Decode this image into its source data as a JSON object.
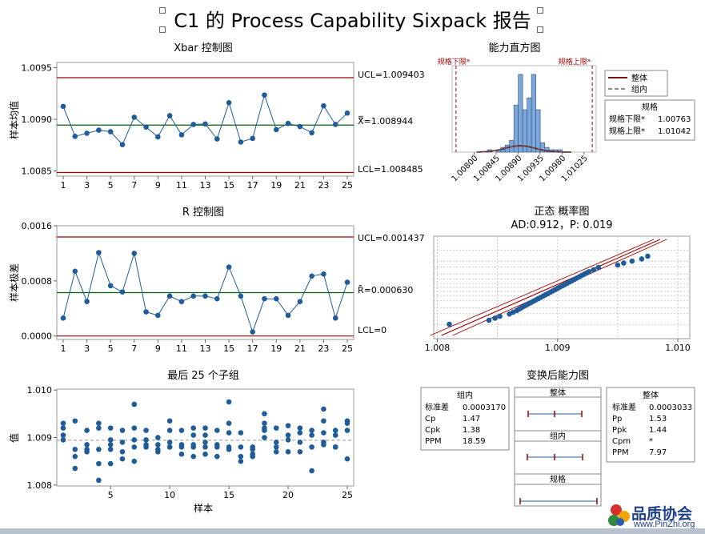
{
  "title": "C1 的 Process Capability Sixpack 报告",
  "xbar": {
    "title": "Xbar 控制图",
    "ylabel": "样本均值",
    "ucl_label": "UCL=1.009403",
    "center_label": "X̿=1.008944",
    "lcl_label": "LCL=1.008485",
    "yticks": [
      "1.0095",
      "1.0090",
      "1.0085"
    ],
    "xticks": [
      "1",
      "3",
      "5",
      "7",
      "9",
      "11",
      "13",
      "15",
      "17",
      "19",
      "21",
      "23",
      "25"
    ],
    "colors": {
      "limit": "#a00000",
      "center": "#006400",
      "point": "#1f5c99"
    }
  },
  "rchart": {
    "title": "R 控制图",
    "ylabel": "样本极差",
    "ucl_label": "UCL=0.001437",
    "center_label": "R̄=0.000630",
    "lcl_label": "LCL=0",
    "yticks": [
      "0.0016",
      "0.0008",
      "0.0000"
    ],
    "xticks": [
      "1",
      "3",
      "5",
      "7",
      "9",
      "11",
      "13",
      "15",
      "17",
      "19",
      "21",
      "23",
      "25"
    ]
  },
  "last25": {
    "title": "最后 25 个子组",
    "ylabel": "值",
    "xlabel": "样本",
    "yticks": [
      "1.010",
      "1.009",
      "1.008"
    ],
    "xticks": [
      "5",
      "10",
      "15",
      "20",
      "25"
    ]
  },
  "histogram": {
    "title": "能力直方图",
    "lsl_label": "规格下限*",
    "usl_label": "规格上限*",
    "xticks": [
      "1.00800",
      "1.00845",
      "1.00890",
      "1.00935",
      "1.00980",
      "1.01025"
    ]
  },
  "legend": {
    "overall": "整体",
    "within": "组内",
    "spec_title": "规格",
    "lsl_row": "规格下限*",
    "lsl_value": "1.00763",
    "usl_row": "规格上限*",
    "usl_value": "1.01042"
  },
  "normal": {
    "title": "正态 概率图",
    "subtitle": "AD:0.912，P: 0.019",
    "xticks": [
      "1.008",
      "1.009",
      "1.010"
    ]
  },
  "capability": {
    "title": "变换后能力图",
    "within_box": {
      "title": "组内",
      "rows": [
        [
          "标准差",
          "0.0003170"
        ],
        [
          "Cp",
          "1.47"
        ],
        [
          "Cpk",
          "1.38"
        ],
        [
          "PPM",
          "18.59"
        ]
      ]
    },
    "overall_box": {
      "title": "整体",
      "rows": [
        [
          "标准差",
          "0.0003033"
        ],
        [
          "Pp",
          "1.53"
        ],
        [
          "Ppk",
          "1.44"
        ],
        [
          "Cpm",
          "*"
        ],
        [
          "PPM",
          "7.97"
        ]
      ]
    },
    "plot_labels": {
      "overall": "整体",
      "within": "组内",
      "spec": "规格"
    }
  },
  "logo": {
    "name": "品质协会",
    "url": "www.PinZhi.org"
  },
  "chart_data": [
    {
      "type": "line",
      "title": "Xbar 控制图",
      "xlabel": "",
      "ylabel": "样本均值",
      "x": [
        1,
        2,
        3,
        4,
        5,
        6,
        7,
        8,
        9,
        10,
        11,
        12,
        13,
        14,
        15,
        16,
        17,
        18,
        19,
        20,
        21,
        22,
        23,
        24,
        25
      ],
      "series": [
        {
          "values": [
            1.009125,
            1.008835,
            1.008865,
            1.008895,
            1.00888,
            1.008755,
            1.00902,
            1.008925,
            1.00883,
            1.009035,
            1.00885,
            1.00895,
            1.008955,
            1.00881,
            1.00916,
            1.00878,
            1.008815,
            1.009235,
            1.0089,
            1.00896,
            1.00893,
            1.00887,
            1.00913,
            1.00895,
            1.00906
          ]
        }
      ],
      "ucl": 1.009403,
      "center": 1.008944,
      "lcl": 1.008485,
      "ylim": [
        1.00845,
        1.00955
      ]
    },
    {
      "type": "line",
      "title": "R 控制图",
      "xlabel": "",
      "ylabel": "样本极差",
      "x": [
        1,
        2,
        3,
        4,
        5,
        6,
        7,
        8,
        9,
        10,
        11,
        12,
        13,
        14,
        15,
        16,
        17,
        18,
        19,
        20,
        21,
        22,
        23,
        24,
        25
      ],
      "series": [
        {
          "values": [
            0.00026,
            0.00094,
            0.0005,
            0.00121,
            0.00073,
            0.00064,
            0.0012,
            0.00035,
            0.0003,
            0.00058,
            0.0005,
            0.00058,
            0.00058,
            0.00054,
            0.001,
            0.00058,
            6e-05,
            0.00054,
            0.00054,
            0.0003,
            0.0005,
            0.00087,
            0.0009,
            0.00026,
            0.00078
          ]
        }
      ],
      "ucl": 0.001437,
      "center": 0.00063,
      "lcl": 0.0,
      "ylim": [
        -5e-05,
        0.0016
      ]
    },
    {
      "type": "scatter",
      "title": "最后 25 个子组",
      "xlabel": "样本",
      "ylabel": "值",
      "center": 1.008944,
      "ylim": [
        1.00798,
        1.01002
      ],
      "subgroups": [
        [
          1.0093,
          1.0092,
          1.00905,
          1.00895
        ],
        [
          1.00935,
          1.00875,
          1.0086,
          1.00835
        ],
        [
          1.00915,
          1.00885,
          1.00875,
          1.0087
        ],
        [
          1.0093,
          1.0092,
          1.00875,
          1.00845,
          1.0081
        ],
        [
          1.0092,
          1.00895,
          1.00885,
          1.00875,
          1.00845
        ],
        [
          1.00915,
          1.0089,
          1.0087,
          1.00855
        ],
        [
          1.0097,
          1.0092,
          1.00895,
          1.0088,
          1.0085
        ],
        [
          1.00915,
          1.00895,
          1.00885,
          1.0088
        ],
        [
          1.009,
          1.00885,
          1.00875,
          1.0087
        ],
        [
          1.00935,
          1.00915,
          1.0089,
          1.0088,
          1.0088
        ],
        [
          1.00915,
          1.00885,
          1.0088,
          1.00865
        ],
        [
          1.0092,
          1.00905,
          1.00885,
          1.0088,
          1.0086
        ],
        [
          1.0092,
          1.00905,
          1.0089,
          1.0088,
          1.00865
        ],
        [
          1.00915,
          1.00885,
          1.0088,
          1.0086
        ],
        [
          1.00975,
          1.0093,
          1.0091,
          1.0088,
          1.00875
        ],
        [
          1.0091,
          1.0088,
          1.0086,
          1.0085
        ],
        [
          1.0088,
          1.00875,
          1.00865,
          1.0086
        ],
        [
          1.0095,
          1.0093,
          1.0092,
          1.00915,
          1.009
        ],
        [
          1.0092,
          1.0089,
          1.0088,
          1.0087
        ],
        [
          1.00925,
          1.00905,
          1.00895,
          1.0087
        ],
        [
          1.0092,
          1.0091,
          1.0089,
          1.0087
        ],
        [
          1.00915,
          1.00905,
          1.0088,
          1.0083
        ],
        [
          1.0096,
          1.00935,
          1.0091,
          1.0089,
          1.00885
        ],
        [
          1.00915,
          1.00905,
          1.0088,
          1.0088
        ],
        [
          1.00935,
          1.0093,
          1.00915,
          1.00855
        ]
      ]
    },
    {
      "type": "bar",
      "title": "能力直方图",
      "bin_width": 9e-05,
      "bin_centers": [
        1.00832,
        1.00841,
        1.0085,
        1.00859,
        1.00868,
        1.00877,
        1.00886,
        1.00895,
        1.00904,
        1.00913,
        1.00922,
        1.00931,
        1.0094,
        1.00949,
        1.00958,
        1.00967,
        1.00976
      ],
      "values": [
        1,
        0,
        1,
        2,
        3,
        5,
        20,
        33,
        18,
        23,
        33,
        18,
        4,
        2,
        1,
        1,
        1
      ],
      "lsl": 1.00763,
      "usl": 1.01042,
      "xlim": [
        1.00755,
        1.0105
      ]
    },
    {
      "type": "scatter",
      "title": "正态 概率图",
      "subtitle": "AD:0.912，P: 0.019",
      "xlim": [
        1.00797,
        1.0101
      ],
      "x": [
        1.0081,
        1.00843,
        1.00848,
        1.00852,
        1.0086,
        1.00863,
        1.00866,
        1.00868,
        1.0087,
        1.00872,
        1.00874,
        1.00876,
        1.00878,
        1.0088,
        1.00882,
        1.00884,
        1.00886,
        1.00888,
        1.0089,
        1.00892,
        1.00894,
        1.00896,
        1.00898,
        1.009,
        1.00902,
        1.00904,
        1.00906,
        1.00908,
        1.0091,
        1.00912,
        1.00914,
        1.00916,
        1.00918,
        1.0092,
        1.00922,
        1.00924,
        1.00926,
        1.0093,
        1.00934,
        1.0095,
        1.00955,
        1.00962,
        1.0097,
        1.00975
      ],
      "percent_z": [
        -2.3,
        -2.05,
        -1.92,
        -1.8,
        -1.66,
        -1.55,
        -1.45,
        -1.36,
        -1.27,
        -1.18,
        -1.1,
        -1.02,
        -0.94,
        -0.86,
        -0.78,
        -0.7,
        -0.62,
        -0.54,
        -0.46,
        -0.38,
        -0.3,
        -0.22,
        -0.14,
        -0.06,
        0.02,
        0.1,
        0.18,
        0.26,
        0.34,
        0.42,
        0.5,
        0.58,
        0.66,
        0.74,
        0.82,
        0.9,
        0.98,
        1.1,
        1.25,
        1.4,
        1.52,
        1.64,
        1.78,
        1.95
      ]
    }
  ]
}
